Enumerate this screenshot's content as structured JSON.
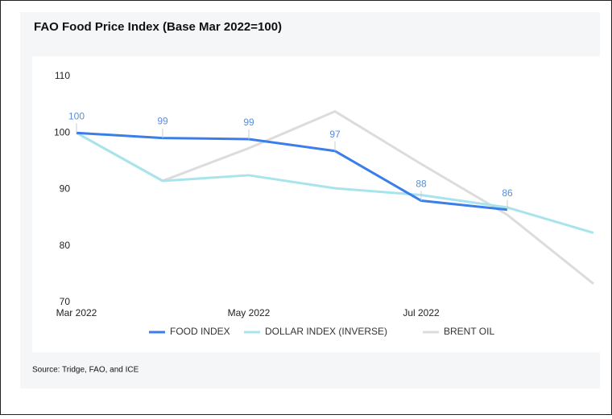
{
  "chart_data": {
    "type": "line",
    "title": "FAO Food Price Index (Base Mar 2022=100)",
    "source": "Source: Tridge, FAO, and ICE",
    "categories": [
      "Mar 2022",
      null,
      "May 2022",
      null,
      "Jul 2022",
      null,
      null
    ],
    "series": [
      {
        "name": "FOOD INDEX",
        "color": "#3b7de9",
        "values": [
          100,
          99.1,
          98.9,
          96.8,
          88.0,
          86.4,
          null
        ],
        "value_labels": [
          "100",
          "99",
          "99",
          "97",
          "88",
          "86",
          null
        ]
      },
      {
        "name": "DOLLAR INDEX (INVERSE)",
        "color": "#a8e4eb",
        "values": [
          100,
          91.5,
          92.5,
          90.2,
          89.0,
          86.8,
          82.3
        ]
      },
      {
        "name": "BRENT OIL",
        "color": "#dcdcdc",
        "values": [
          100,
          91.5,
          97.3,
          103.8,
          94.5,
          85.5,
          73.3
        ]
      }
    ],
    "ylim": [
      70,
      110
    ],
    "yticks": [
      70,
      80,
      90,
      100,
      110
    ],
    "grid": false,
    "legend": "bottom"
  }
}
